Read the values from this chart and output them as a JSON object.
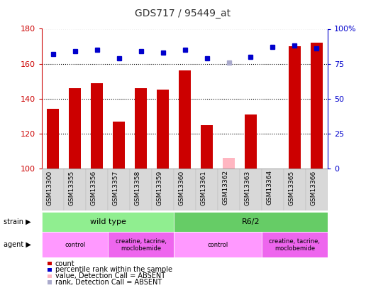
{
  "title": "GDS717 / 95449_at",
  "samples": [
    "GSM13300",
    "GSM13355",
    "GSM13356",
    "GSM13357",
    "GSM13358",
    "GSM13359",
    "GSM13360",
    "GSM13361",
    "GSM13362",
    "GSM13363",
    "GSM13364",
    "GSM13365",
    "GSM13366"
  ],
  "bar_values": [
    134,
    146,
    149,
    127,
    146,
    145,
    156,
    125,
    100,
    131,
    100,
    170,
    172
  ],
  "bar_absent": [
    false,
    false,
    false,
    false,
    false,
    false,
    false,
    false,
    true,
    false,
    false,
    false,
    false
  ],
  "bar_absent_value": [
    0,
    0,
    0,
    0,
    0,
    0,
    0,
    0,
    106,
    0,
    0,
    0,
    0
  ],
  "rank_values_pct": [
    82,
    84,
    85,
    79,
    84,
    83,
    85,
    79,
    76,
    80,
    87,
    88,
    86
  ],
  "rank_absent": [
    false,
    false,
    false,
    false,
    false,
    false,
    false,
    false,
    true,
    false,
    false,
    false,
    false
  ],
  "ylim_left": [
    100,
    180
  ],
  "ylim_right": [
    0,
    100
  ],
  "yticks_left": [
    100,
    120,
    140,
    160,
    180
  ],
  "yticks_right": [
    0,
    25,
    50,
    75,
    100
  ],
  "strain_groups": [
    {
      "label": "wild type",
      "start": 0,
      "end": 6,
      "color": "#90EE90"
    },
    {
      "label": "R6/2",
      "start": 6,
      "end": 13,
      "color": "#66CC66"
    }
  ],
  "agent_groups": [
    {
      "label": "control",
      "start": 0,
      "end": 3,
      "color": "#FF99FF"
    },
    {
      "label": "creatine, tacrine,\nmoclobemide",
      "start": 3,
      "end": 6,
      "color": "#EE66EE"
    },
    {
      "label": "control",
      "start": 6,
      "end": 10,
      "color": "#FF99FF"
    },
    {
      "label": "creatine, tacrine,\nmoclobemide",
      "start": 10,
      "end": 13,
      "color": "#EE66EE"
    }
  ],
  "bar_color": "#CC0000",
  "bar_absent_color": "#FFB6C1",
  "rank_color": "#0000CC",
  "rank_absent_color": "#AAAACC",
  "bar_width": 0.55,
  "background_color": "#ffffff",
  "dotted_color": "#000000",
  "left_label_color": "#CC0000",
  "right_label_color": "#0000CC",
  "legend_items": [
    {
      "color": "#CC0000",
      "label": "count"
    },
    {
      "color": "#0000CC",
      "label": "percentile rank within the sample"
    },
    {
      "color": "#FFB6C1",
      "label": "value, Detection Call = ABSENT"
    },
    {
      "color": "#AAAACC",
      "label": "rank, Detection Call = ABSENT"
    }
  ]
}
